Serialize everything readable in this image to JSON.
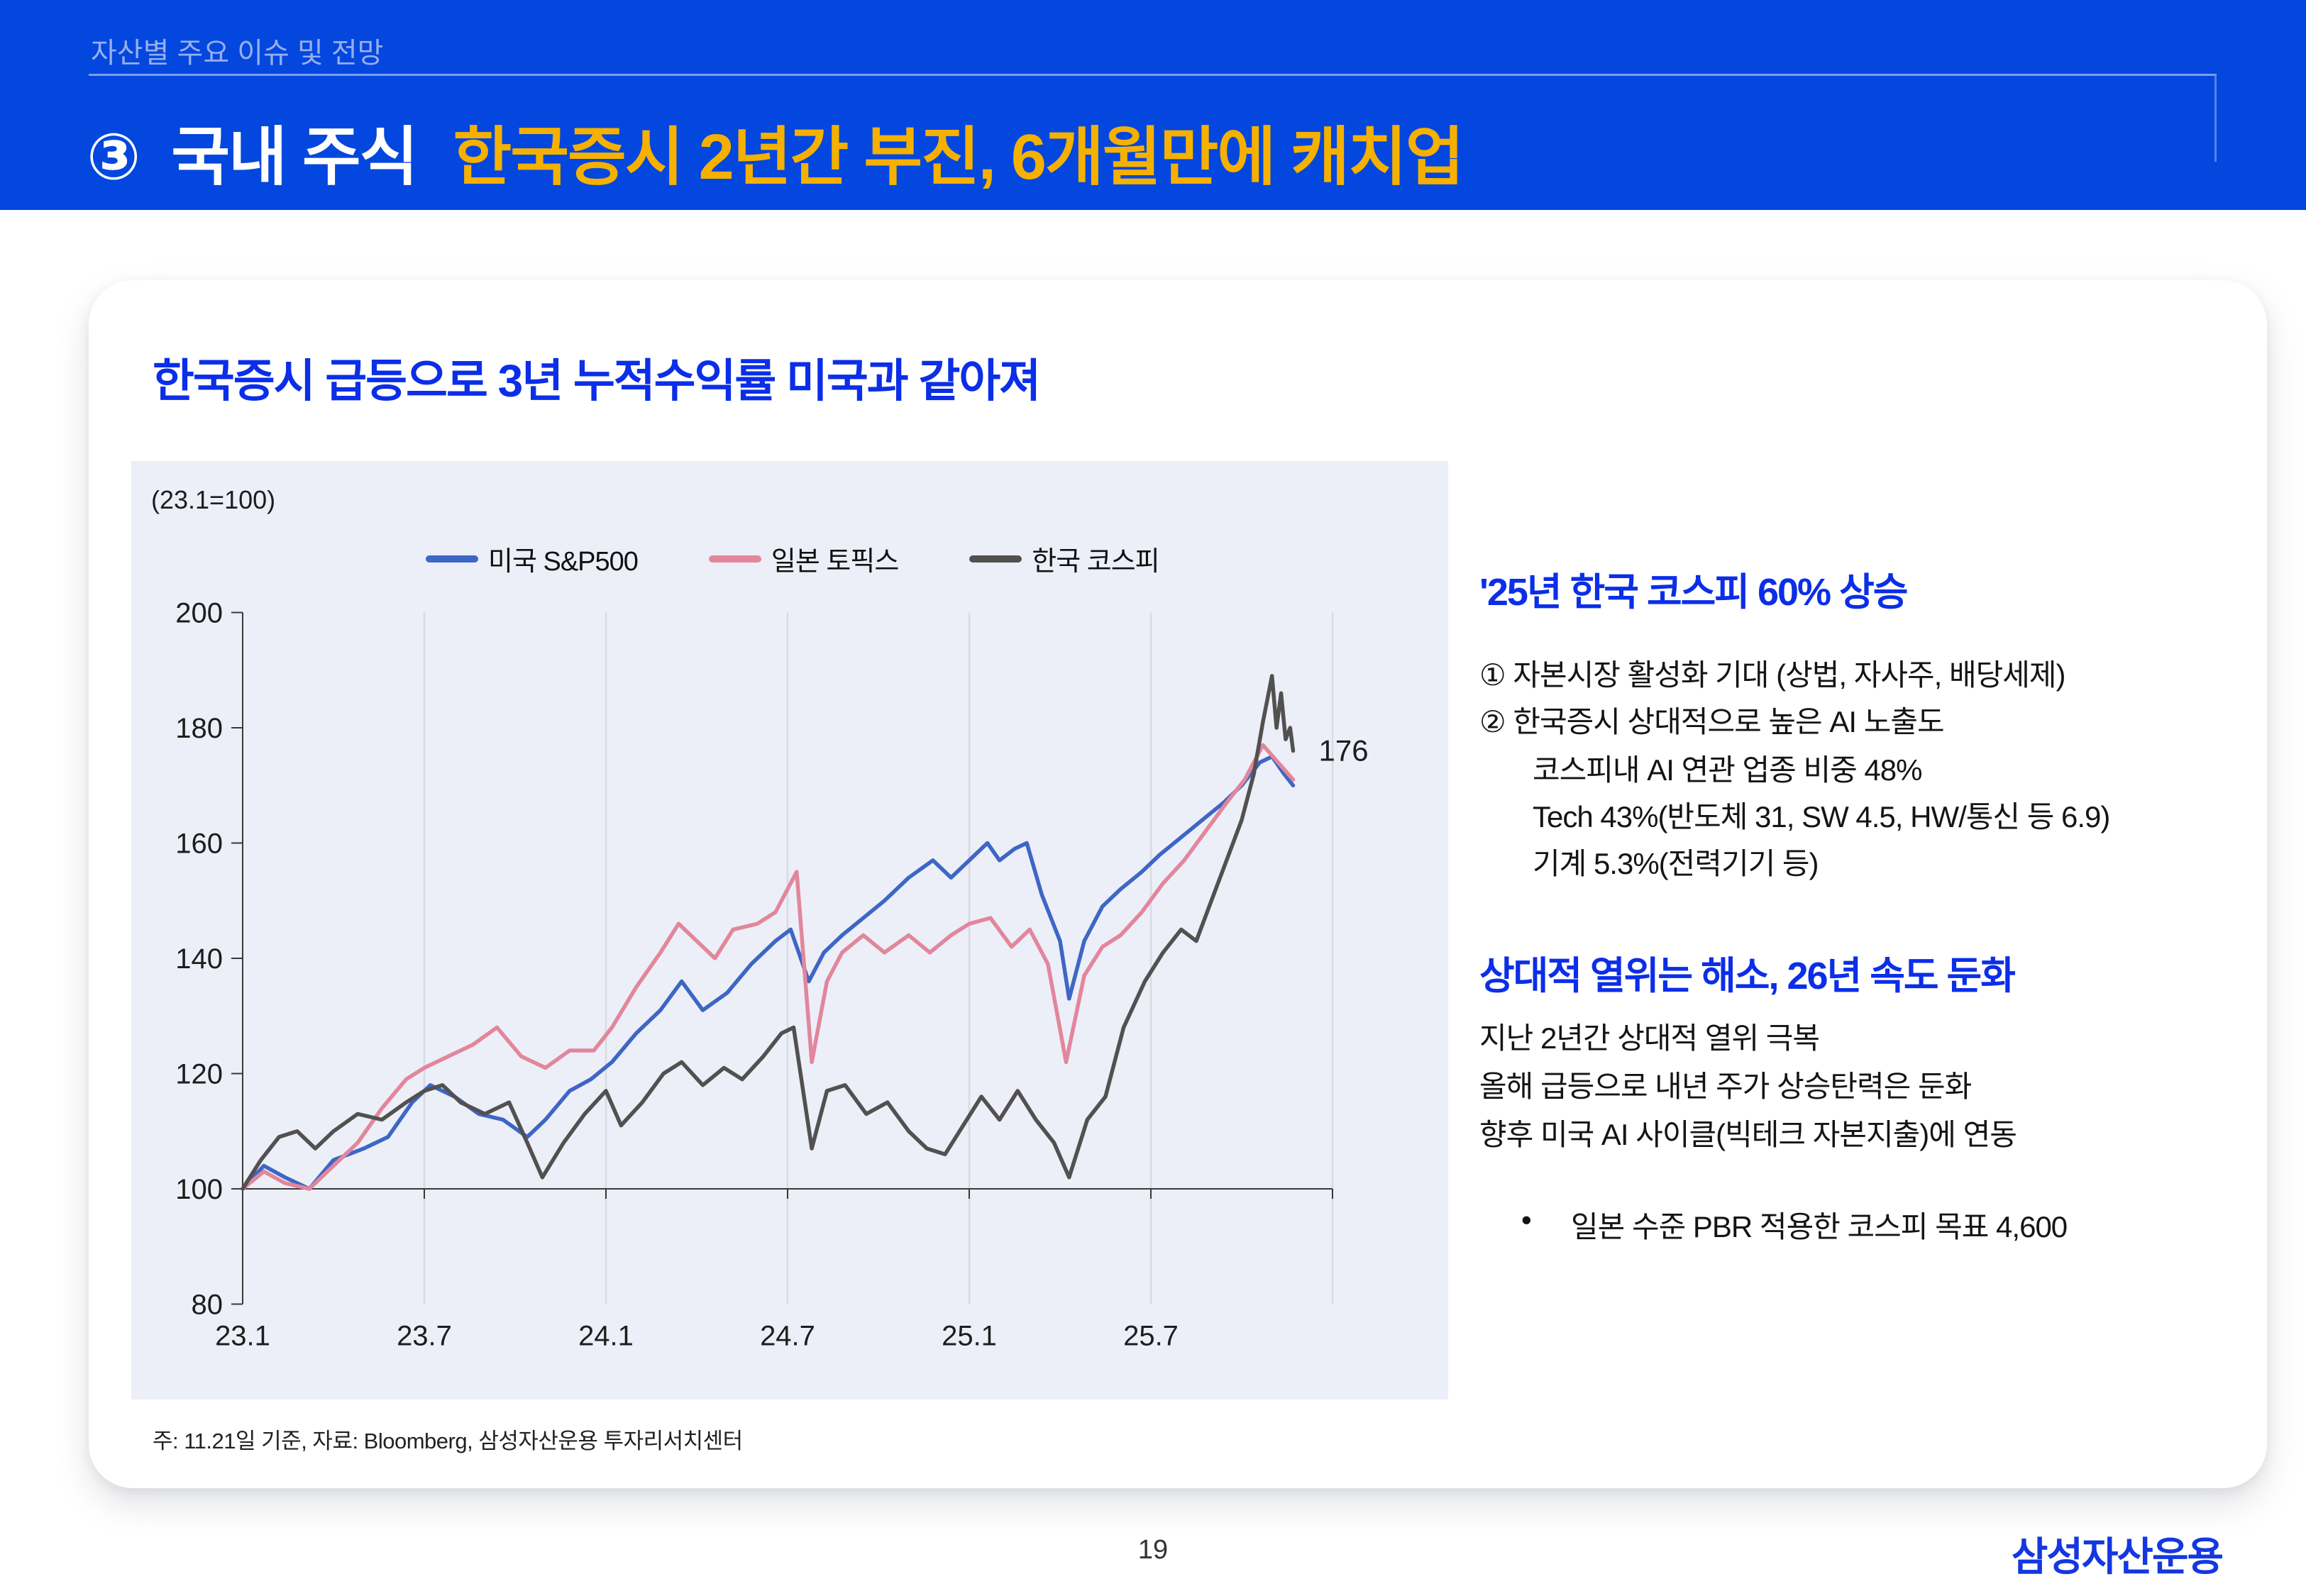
{
  "header": {
    "eyebrow": "자산별 주요 이슈 및 전망",
    "section_number": "③",
    "title_white": "국내 주식",
    "title_yellow": "한국증시 2년간 부진, 6개월만에 캐치업",
    "bg_color": "#0347DE",
    "accent_color": "#F5B000"
  },
  "card": {
    "title": "한국증시 급등으로 3년 누적수익률 미국과 같아져",
    "footnote": "주: 11.21일 기준, 자료: Bloomberg, 삼성자산운용 투자리서치센터"
  },
  "chart_data": {
    "type": "line",
    "title": "한국증시 급등으로 3년 누적수익률 미국과 같아져",
    "unit_note": "(23.1=100)",
    "x_ticks": [
      "23.1",
      "23.7",
      "24.1",
      "24.7",
      "25.1",
      "25.7"
    ],
    "x_tick_months": [
      0,
      6,
      12,
      18,
      24,
      30
    ],
    "grid_months": [
      6,
      12,
      18,
      24,
      30,
      36
    ],
    "y_ticks": [
      80,
      100,
      120,
      140,
      160,
      180,
      200
    ],
    "ylim": [
      80,
      200
    ],
    "baseline": 100,
    "legend_position": "top",
    "grid": true,
    "end_label": "176",
    "end_label_value": 176,
    "panel_bg": "#ECEFF8",
    "grid_color": "#D9DADF",
    "axis_color": "#3A3A3A",
    "series": [
      {
        "name": "미국 S&P500",
        "color": "#3E66C4",
        "points": [
          [
            0,
            100
          ],
          [
            0.7,
            104
          ],
          [
            1.4,
            102
          ],
          [
            2.2,
            100
          ],
          [
            3,
            105
          ],
          [
            4,
            107
          ],
          [
            4.8,
            109
          ],
          [
            5.6,
            115
          ],
          [
            6.2,
            118
          ],
          [
            7,
            116
          ],
          [
            7.8,
            113
          ],
          [
            8.6,
            112
          ],
          [
            9.4,
            109
          ],
          [
            10,
            112
          ],
          [
            10.8,
            117
          ],
          [
            11.5,
            119
          ],
          [
            12.2,
            122
          ],
          [
            13,
            127
          ],
          [
            13.8,
            131
          ],
          [
            14.5,
            136
          ],
          [
            15.2,
            131
          ],
          [
            16,
            134
          ],
          [
            16.8,
            139
          ],
          [
            17.6,
            143
          ],
          [
            18.1,
            145
          ],
          [
            18.7,
            136
          ],
          [
            19.2,
            141
          ],
          [
            19.8,
            144
          ],
          [
            20.5,
            147
          ],
          [
            21.2,
            150
          ],
          [
            22,
            154
          ],
          [
            22.8,
            157
          ],
          [
            23.4,
            154
          ],
          [
            24,
            157
          ],
          [
            24.6,
            160
          ],
          [
            25,
            157
          ],
          [
            25.5,
            159
          ],
          [
            25.9,
            160
          ],
          [
            26.4,
            151
          ],
          [
            27,
            143
          ],
          [
            27.3,
            133
          ],
          [
            27.8,
            143
          ],
          [
            28.4,
            149
          ],
          [
            29,
            152
          ],
          [
            29.7,
            155
          ],
          [
            30.3,
            158
          ],
          [
            31,
            161
          ],
          [
            31.7,
            164
          ],
          [
            32.4,
            167
          ],
          [
            33,
            170
          ],
          [
            33.6,
            174
          ],
          [
            34,
            175
          ],
          [
            34.4,
            172
          ],
          [
            34.7,
            170
          ]
        ]
      },
      {
        "name": "일본 토픽스",
        "color": "#E2869C",
        "points": [
          [
            0,
            100
          ],
          [
            0.7,
            103
          ],
          [
            1.4,
            101
          ],
          [
            2.2,
            100
          ],
          [
            3,
            104
          ],
          [
            3.8,
            108
          ],
          [
            4.6,
            114
          ],
          [
            5.4,
            119
          ],
          [
            6,
            121
          ],
          [
            6.8,
            123
          ],
          [
            7.6,
            125
          ],
          [
            8.4,
            128
          ],
          [
            9.2,
            123
          ],
          [
            10,
            121
          ],
          [
            10.8,
            124
          ],
          [
            11.6,
            124
          ],
          [
            12.2,
            128
          ],
          [
            13,
            135
          ],
          [
            13.8,
            141
          ],
          [
            14.4,
            146
          ],
          [
            15,
            143
          ],
          [
            15.6,
            140
          ],
          [
            16.2,
            145
          ],
          [
            17,
            146
          ],
          [
            17.6,
            148
          ],
          [
            18,
            152
          ],
          [
            18.3,
            155
          ],
          [
            18.8,
            122
          ],
          [
            19.3,
            136
          ],
          [
            19.8,
            141
          ],
          [
            20.5,
            144
          ],
          [
            21.2,
            141
          ],
          [
            22,
            144
          ],
          [
            22.7,
            141
          ],
          [
            23.4,
            144
          ],
          [
            24,
            146
          ],
          [
            24.7,
            147
          ],
          [
            25.4,
            142
          ],
          [
            26,
            145
          ],
          [
            26.6,
            139
          ],
          [
            27.2,
            122
          ],
          [
            27.8,
            137
          ],
          [
            28.4,
            142
          ],
          [
            29,
            144
          ],
          [
            29.7,
            148
          ],
          [
            30.4,
            153
          ],
          [
            31.1,
            157
          ],
          [
            31.8,
            162
          ],
          [
            32.5,
            167
          ],
          [
            33.1,
            171
          ],
          [
            33.7,
            177
          ],
          [
            34.2,
            174
          ],
          [
            34.7,
            171
          ]
        ]
      },
      {
        "name": "한국 코스피",
        "color": "#535050",
        "points": [
          [
            0,
            100
          ],
          [
            0.6,
            105
          ],
          [
            1.2,
            109
          ],
          [
            1.8,
            110
          ],
          [
            2.4,
            107
          ],
          [
            3,
            110
          ],
          [
            3.8,
            113
          ],
          [
            4.6,
            112
          ],
          [
            5.4,
            115
          ],
          [
            6,
            117
          ],
          [
            6.6,
            118
          ],
          [
            7.2,
            115
          ],
          [
            8,
            113
          ],
          [
            8.8,
            115
          ],
          [
            9.4,
            108
          ],
          [
            9.9,
            102
          ],
          [
            10.6,
            108
          ],
          [
            11.3,
            113
          ],
          [
            12,
            117
          ],
          [
            12.5,
            111
          ],
          [
            13.2,
            115
          ],
          [
            13.9,
            120
          ],
          [
            14.5,
            122
          ],
          [
            15.2,
            118
          ],
          [
            15.9,
            121
          ],
          [
            16.5,
            119
          ],
          [
            17.2,
            123
          ],
          [
            17.8,
            127
          ],
          [
            18.2,
            128
          ],
          [
            18.8,
            107
          ],
          [
            19.3,
            117
          ],
          [
            19.9,
            118
          ],
          [
            20.6,
            113
          ],
          [
            21.3,
            115
          ],
          [
            22,
            110
          ],
          [
            22.6,
            107
          ],
          [
            23.2,
            106
          ],
          [
            23.8,
            111
          ],
          [
            24.4,
            116
          ],
          [
            25,
            112
          ],
          [
            25.6,
            117
          ],
          [
            26.2,
            112
          ],
          [
            26.8,
            108
          ],
          [
            27.3,
            102
          ],
          [
            27.9,
            112
          ],
          [
            28.5,
            116
          ],
          [
            29.1,
            128
          ],
          [
            29.8,
            136
          ],
          [
            30.4,
            141
          ],
          [
            31,
            145
          ],
          [
            31.5,
            143
          ],
          [
            32,
            150
          ],
          [
            32.5,
            157
          ],
          [
            33,
            164
          ],
          [
            33.4,
            172
          ],
          [
            33.7,
            181
          ],
          [
            34,
            189
          ],
          [
            34.15,
            180
          ],
          [
            34.3,
            186
          ],
          [
            34.45,
            178
          ],
          [
            34.6,
            180
          ],
          [
            34.7,
            176
          ]
        ]
      }
    ]
  },
  "panel": {
    "section1": {
      "heading": "'25년 한국 코스피 60% 상승",
      "items": [
        "① 자본시장 활성화 기대 (상법, 자사주, 배당세제)",
        "② 한국증시 상대적으로 높은 AI 노출도"
      ],
      "sub_items": [
        "코스피내 AI 연관 업종 비중 48%",
        "Tech 43%(반도체 31, SW 4.5, HW/통신 등 6.9)",
        "기계 5.3%(전력기기 등)"
      ]
    },
    "section2": {
      "heading": "상대적 열위는 해소, 26년 속도 둔화",
      "lines": [
        "지난 2년간 상대적 열위 극복",
        "올해 급등으로 내년 주가 상승탄력은 둔화",
        "향후 미국 AI 사이클(빅테크 자본지출)에 연동"
      ],
      "bullet_glyph": "•",
      "bullet": "일본 수준 PBR 적용한 코스피 목표 4,600"
    }
  },
  "footer": {
    "page_number": "19",
    "brand_logo": "삼성자산운용"
  }
}
